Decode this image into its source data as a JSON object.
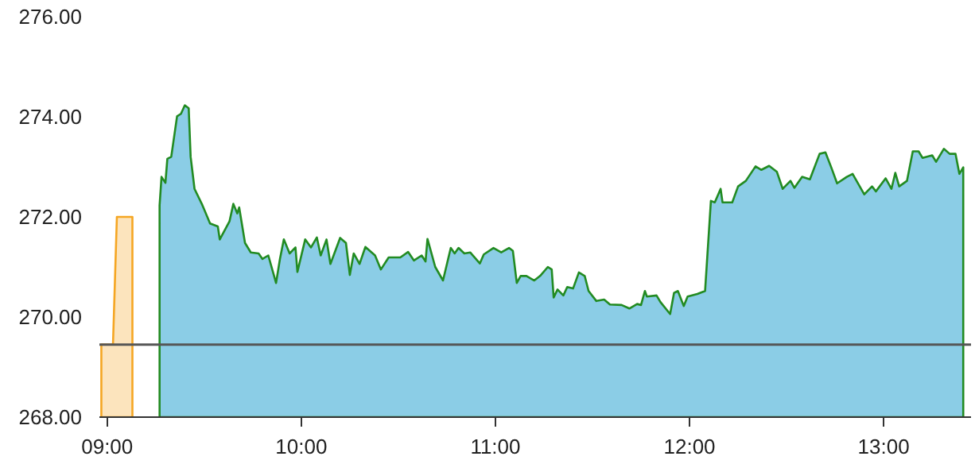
{
  "chart_data": {
    "type": "area",
    "xlim": [
      8.96,
      13.45
    ],
    "ylim": [
      268,
      276
    ],
    "xticks": [
      {
        "value": 9,
        "label": "09:00"
      },
      {
        "value": 10,
        "label": "10:00"
      },
      {
        "value": 11,
        "label": "11:00"
      },
      {
        "value": 12,
        "label": "12:00"
      },
      {
        "value": 13,
        "label": "13:00"
      }
    ],
    "yticks": [
      {
        "value": 268,
        "label": "268.00"
      },
      {
        "value": 270,
        "label": "270.00"
      },
      {
        "value": 272,
        "label": "272.00"
      },
      {
        "value": 274,
        "label": "274.00"
      },
      {
        "value": 276,
        "label": "276.00"
      }
    ],
    "grid": false,
    "ref_lines": [
      {
        "axis": "y",
        "value": 269.45,
        "color": "#555555"
      }
    ],
    "series": [
      {
        "color": "#f5a623",
        "x": [
          8.97,
          9.03,
          9.05,
          9.13
        ],
        "values": [
          269.45,
          269.45,
          272.0,
          272.0
        ]
      },
      {
        "color": "#228b22",
        "x": [
          9.27,
          9.28,
          9.3,
          9.31,
          9.33,
          9.36,
          9.38,
          9.4,
          9.42,
          9.43,
          9.45,
          9.49,
          9.53,
          9.57,
          9.58,
          9.63,
          9.65,
          9.67,
          9.68,
          9.71,
          9.74,
          9.78,
          9.8,
          9.83,
          9.87,
          9.89,
          9.91,
          9.94,
          9.97,
          9.98,
          10.02,
          10.05,
          10.08,
          10.1,
          10.13,
          10.15,
          10.2,
          10.23,
          10.25,
          10.27,
          10.3,
          10.33,
          10.38,
          10.41,
          10.45,
          10.51,
          10.55,
          10.58,
          10.62,
          10.64,
          10.65,
          10.69,
          10.73,
          10.77,
          10.79,
          10.81,
          10.84,
          10.87,
          10.92,
          10.94,
          10.99,
          11.03,
          11.07,
          11.09,
          11.11,
          11.13,
          11.16,
          11.2,
          11.23,
          11.27,
          11.29,
          11.3,
          11.32,
          11.35,
          11.37,
          11.4,
          11.43,
          11.46,
          11.48,
          11.52,
          11.56,
          11.59,
          11.65,
          11.69,
          11.73,
          11.75,
          11.77,
          11.78,
          11.83,
          11.85,
          11.9,
          11.92,
          11.94,
          11.97,
          11.99,
          12.04,
          12.08,
          12.11,
          12.13,
          12.16,
          12.17,
          12.22,
          12.25,
          12.29,
          12.34,
          12.37,
          12.41,
          12.45,
          12.48,
          12.52,
          12.54,
          12.58,
          12.62,
          12.67,
          12.7,
          12.73,
          12.76,
          12.81,
          12.84,
          12.9,
          12.94,
          12.96,
          13.01,
          13.04,
          13.06,
          13.08,
          13.12,
          13.15,
          13.18,
          13.2,
          13.25,
          13.27,
          13.31,
          13.34,
          13.37,
          13.39,
          13.41
        ],
        "values": [
          272.23,
          272.8,
          272.68,
          273.16,
          273.2,
          274.01,
          274.06,
          274.23,
          274.17,
          273.2,
          272.56,
          272.24,
          271.87,
          271.81,
          271.55,
          271.91,
          272.26,
          272.07,
          272.19,
          271.48,
          271.29,
          271.27,
          271.16,
          271.23,
          270.68,
          271.16,
          271.55,
          271.27,
          271.39,
          270.9,
          271.55,
          271.39,
          271.59,
          271.23,
          271.55,
          271.06,
          271.58,
          271.48,
          270.84,
          271.27,
          271.06,
          271.4,
          271.23,
          270.95,
          271.19,
          271.19,
          271.3,
          271.13,
          271.23,
          271.11,
          271.56,
          271.0,
          270.73,
          271.38,
          271.27,
          271.38,
          271.27,
          271.29,
          271.07,
          271.25,
          271.38,
          271.29,
          271.38,
          271.32,
          270.68,
          270.82,
          270.82,
          270.73,
          270.82,
          271.0,
          270.95,
          270.39,
          270.55,
          270.43,
          270.6,
          270.57,
          270.89,
          270.82,
          270.52,
          270.32,
          270.35,
          270.25,
          270.24,
          270.17,
          270.26,
          270.24,
          270.52,
          270.41,
          270.43,
          270.3,
          270.06,
          270.48,
          270.52,
          270.22,
          270.41,
          270.46,
          270.52,
          272.32,
          272.29,
          272.56,
          272.29,
          272.29,
          272.61,
          272.72,
          273.01,
          272.94,
          273.02,
          272.9,
          272.56,
          272.72,
          272.58,
          272.8,
          272.75,
          273.26,
          273.29,
          272.99,
          272.67,
          272.8,
          272.86,
          272.45,
          272.61,
          272.51,
          272.77,
          272.56,
          272.88,
          272.61,
          272.72,
          273.31,
          273.31,
          273.18,
          273.23,
          273.1,
          273.36,
          273.26,
          273.26,
          272.86,
          272.99
        ]
      }
    ]
  }
}
